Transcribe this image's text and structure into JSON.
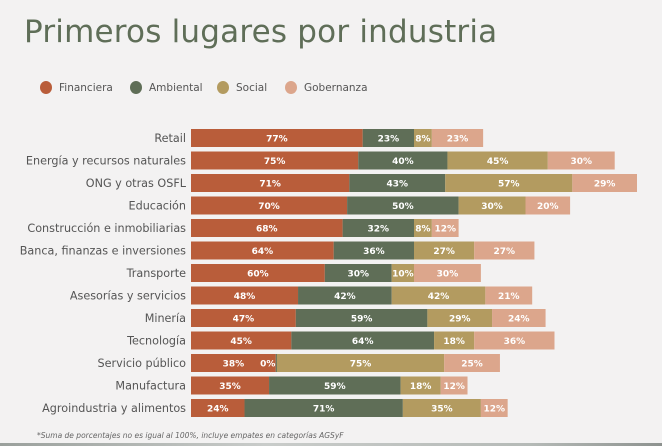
{
  "chart_data": {
    "type": "bar",
    "orientation": "horizontal",
    "stacked": true,
    "title": "Primeros lugares por industria",
    "xlabel": "",
    "ylabel": "",
    "unit": "%",
    "grid": false,
    "legend_position": "top-left",
    "categories": [
      "Retail",
      "Energía y recursos naturales",
      "ONG y otras OSFL",
      "Educación",
      "Construcción e inmobiliarias",
      "Banca, finanzas e inversiones",
      "Transporte",
      "Asesorías y servicios",
      "Minería",
      "Tecnología",
      "Servicio público",
      "Manufactura",
      "Agroindustria y alimentos"
    ],
    "series": [
      {
        "name": "Financiera",
        "color": "#b95d3a",
        "values": [
          77,
          75,
          71,
          70,
          68,
          64,
          60,
          48,
          47,
          45,
          38,
          35,
          24
        ]
      },
      {
        "name": "Ambiental",
        "color": "#5f6e57",
        "values": [
          23,
          40,
          43,
          50,
          32,
          36,
          30,
          42,
          59,
          64,
          0,
          59,
          71
        ]
      },
      {
        "name": "Social",
        "color": "#b39b60",
        "values": [
          8,
          45,
          57,
          30,
          8,
          27,
          10,
          42,
          29,
          18,
          75,
          18,
          35
        ]
      },
      {
        "name": "Gobernanza",
        "color": "#dca68c",
        "values": [
          23,
          30,
          29,
          20,
          12,
          27,
          30,
          21,
          24,
          36,
          25,
          12,
          12
        ]
      }
    ],
    "footnote": "*Suma de porcentajes no es igual al 100%, incluye empates en categorías AGSyF"
  },
  "colors": {
    "background": "#f3f2f2",
    "title": "#5f6e58",
    "text": "#555555"
  }
}
